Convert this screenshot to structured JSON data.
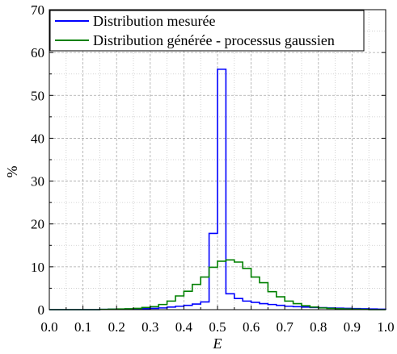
{
  "chart_data": {
    "type": "line",
    "xlabel": "E",
    "ylabel": "%",
    "xlim": [
      0,
      1
    ],
    "ylim": [
      0,
      70
    ],
    "x_ticks": [
      "0.0",
      "0.1",
      "0.2",
      "0.3",
      "0.4",
      "0.5",
      "0.6",
      "0.7",
      "0.8",
      "0.9",
      "1.0"
    ],
    "y_ticks": [
      "0",
      "10",
      "20",
      "30",
      "40",
      "50",
      "60",
      "70"
    ],
    "grid": true,
    "legend_position": "top-left",
    "bin_edges": [
      0.0,
      0.025,
      0.05,
      0.075,
      0.1,
      0.125,
      0.15,
      0.175,
      0.2,
      0.225,
      0.25,
      0.275,
      0.3,
      0.325,
      0.35,
      0.375,
      0.4,
      0.425,
      0.45,
      0.475,
      0.5,
      0.525,
      0.55,
      0.575,
      0.6,
      0.625,
      0.65,
      0.675,
      0.7,
      0.725,
      0.75,
      0.775,
      0.8,
      0.825,
      0.85,
      0.875,
      0.9,
      0.925,
      0.95,
      0.975,
      1.0
    ],
    "series": [
      {
        "name": "Distribution mesurée",
        "color": "#0000ff",
        "values": [
          0.0,
          0.0,
          0.0,
          0.0,
          0.0,
          0.0,
          0.05,
          0.1,
          0.1,
          0.15,
          0.2,
          0.25,
          0.3,
          0.4,
          0.6,
          0.8,
          1.0,
          1.3,
          1.8,
          17.8,
          56.1,
          3.7,
          2.6,
          2.0,
          1.7,
          1.4,
          1.2,
          1.0,
          0.8,
          0.7,
          0.6,
          0.5,
          0.45,
          0.4,
          0.35,
          0.3,
          0.25,
          0.2,
          0.15,
          0.1
        ]
      },
      {
        "name": "Distribution générée - processus gaussien",
        "color": "#008000",
        "values": [
          0.0,
          0.0,
          0.0,
          0.0,
          0.0,
          0.0,
          0.05,
          0.1,
          0.15,
          0.2,
          0.3,
          0.5,
          0.7,
          1.2,
          2.0,
          3.2,
          4.3,
          5.9,
          7.6,
          9.9,
          11.3,
          11.6,
          11.1,
          9.6,
          7.6,
          6.3,
          4.2,
          3.0,
          2.0,
          1.4,
          0.9,
          0.6,
          0.4,
          0.3,
          0.2,
          0.15,
          0.1,
          0.05,
          0.0,
          0.0
        ]
      }
    ]
  }
}
